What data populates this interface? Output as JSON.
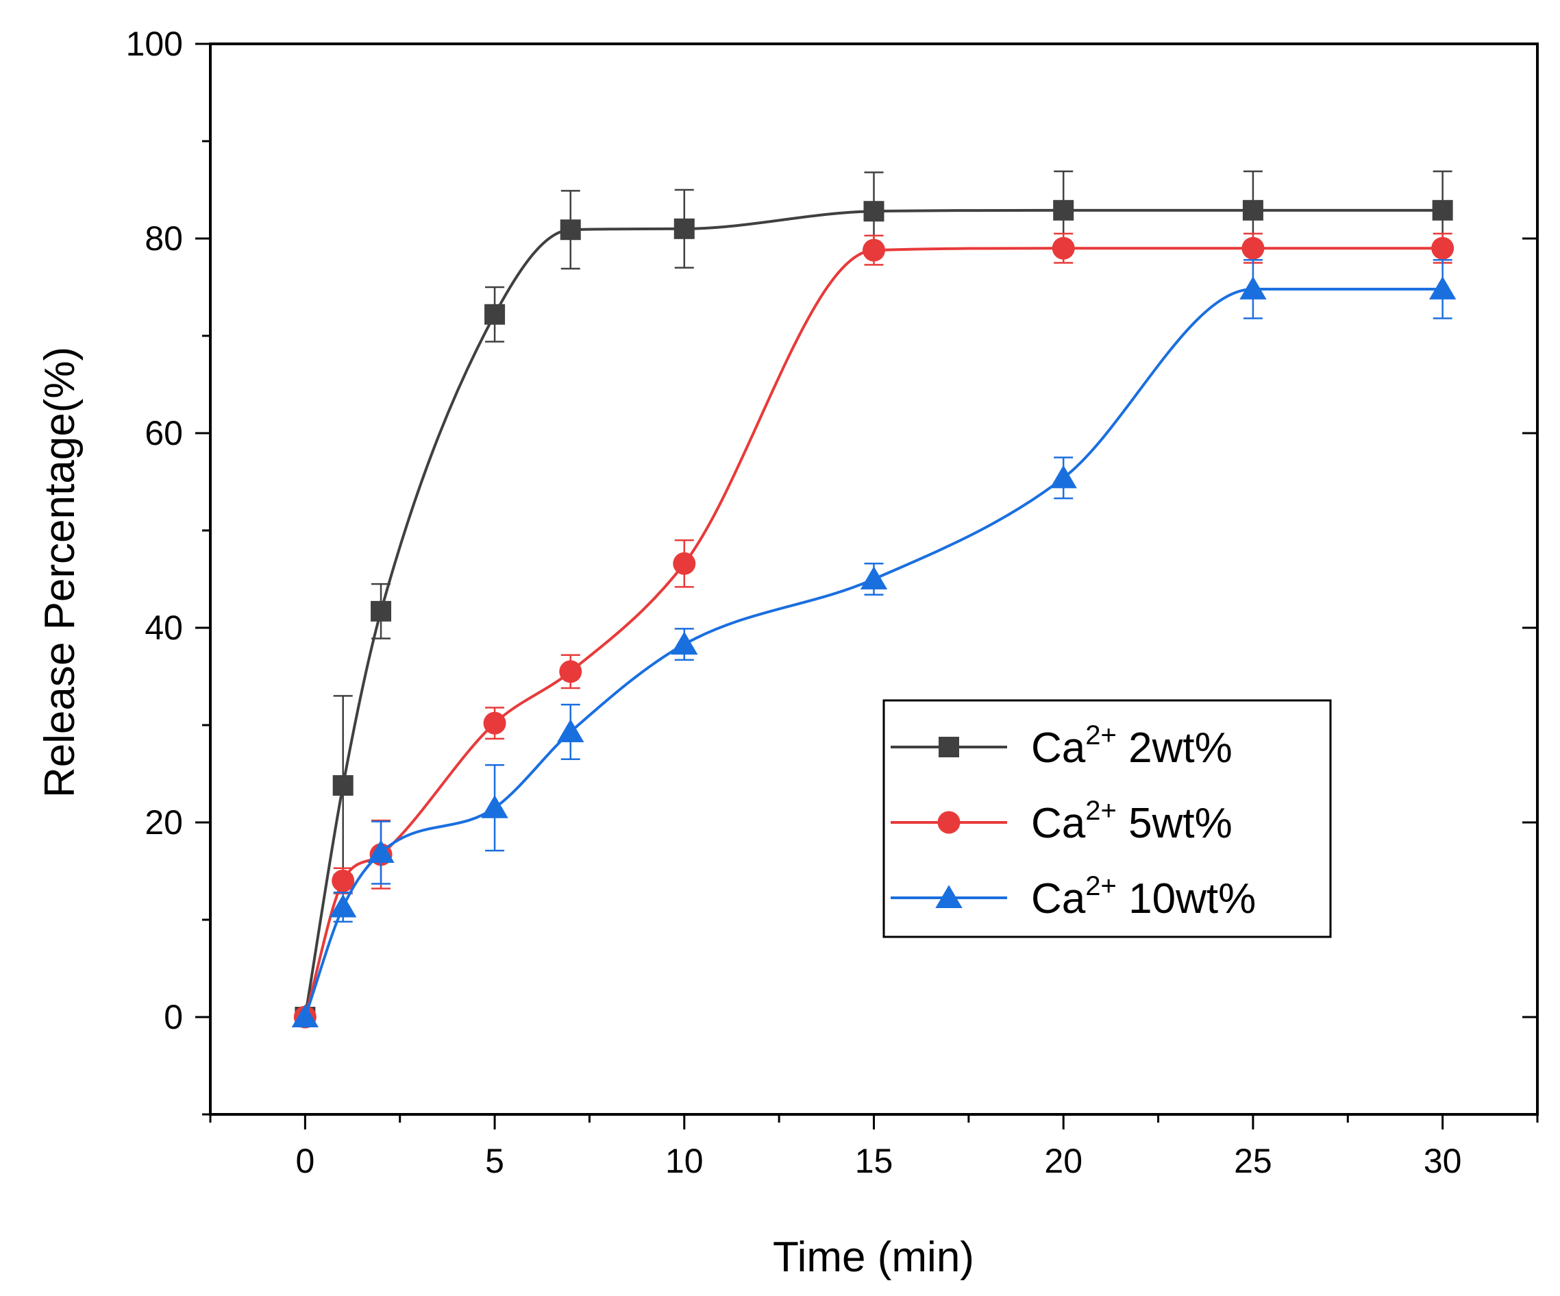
{
  "chart_data": {
    "type": "line",
    "title": "",
    "xlabel": "Time (min)",
    "ylabel": "Release Percentage(%)",
    "xlim": [
      -2.5,
      32.5
    ],
    "ylim": [
      -10,
      100
    ],
    "xticks": [
      0,
      5,
      10,
      15,
      20,
      25,
      30
    ],
    "xtick_labels": [
      "0",
      "5",
      "10",
      "15",
      "20",
      "25",
      "30"
    ],
    "yticks": [
      0,
      20,
      40,
      60,
      80,
      100
    ],
    "ytick_labels": [
      "0",
      "20",
      "40",
      "60",
      "80",
      "100"
    ],
    "grid": false,
    "legend_position": "center-right",
    "series": [
      {
        "name": "Ca",
        "superscript": "2+",
        "name_suffix": " 2wt%",
        "color": "#404040",
        "marker": "square",
        "x": [
          0,
          1,
          2,
          5,
          7,
          10,
          15,
          20,
          25,
          30
        ],
        "y": [
          0,
          23.8,
          41.7,
          72.2,
          80.9,
          81.0,
          82.8,
          82.9,
          82.9,
          82.9
        ],
        "err": [
          0,
          9.2,
          2.8,
          2.8,
          4.0,
          4.0,
          4.0,
          4.0,
          4.0,
          4.0
        ]
      },
      {
        "name": "Ca",
        "superscript": "2+",
        "name_suffix": " 5wt%",
        "color": "#e83a3a",
        "marker": "circle",
        "x": [
          0,
          1,
          2,
          5,
          7,
          10,
          15,
          20,
          25,
          30
        ],
        "y": [
          0,
          14.0,
          16.7,
          30.2,
          35.5,
          46.6,
          78.8,
          79.0,
          79.0,
          79.0
        ],
        "err": [
          0,
          1.3,
          3.5,
          1.6,
          1.7,
          2.4,
          1.5,
          1.5,
          1.5,
          1.5
        ]
      },
      {
        "name": "Ca",
        "superscript": "2+",
        "name_suffix": " 10wt%",
        "color": "#1a6fdf",
        "marker": "triangle",
        "x": [
          0,
          1,
          2,
          5,
          7,
          10,
          15,
          20,
          25,
          30
        ],
        "y": [
          0,
          11.3,
          16.9,
          21.5,
          29.3,
          38.3,
          45.0,
          55.4,
          74.8,
          74.8
        ],
        "err": [
          0,
          1.5,
          3.2,
          4.4,
          2.8,
          1.6,
          1.6,
          2.1,
          3.0,
          3.0
        ]
      }
    ]
  }
}
